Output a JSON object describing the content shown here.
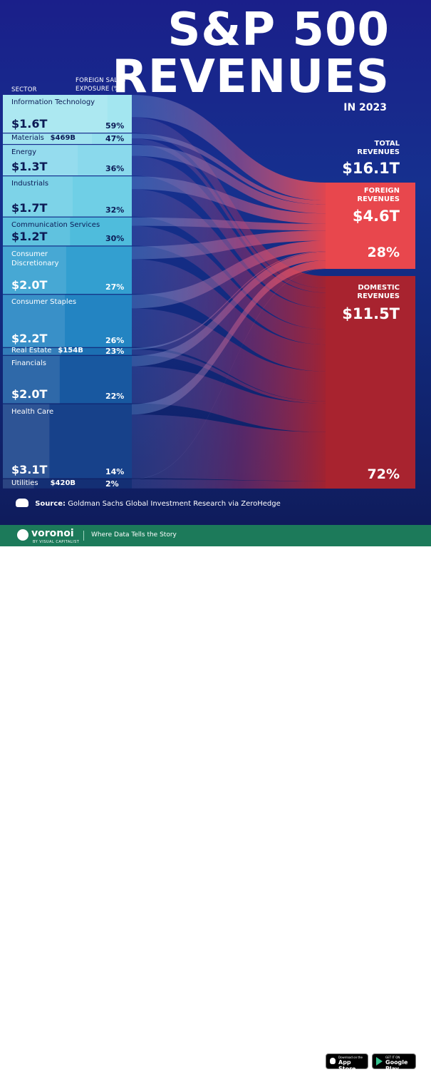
{
  "title": {
    "line1": "S&P 500",
    "line2": "REVENUES",
    "sub": "IN 2023"
  },
  "headers": {
    "sector": "SECTOR",
    "foreign_line1": "FOREIGN SALES",
    "foreign_line2": "EXPOSURE (%)"
  },
  "right": {
    "total_label1": "TOTAL",
    "total_label2": "REVENUES",
    "total_value": "$16.1T",
    "foreign_label1": "FOREIGN",
    "foreign_label2": "REVENUES",
    "foreign_value": "$4.6T",
    "foreign_pct": "28%",
    "domestic_label1": "DOMESTIC",
    "domestic_label2": "REVENUES",
    "domestic_value": "$11.5T",
    "domestic_pct": "72%"
  },
  "chart_data": {
    "type": "sankey",
    "unit": "USD",
    "sectors": [
      {
        "name": "Information Technology",
        "revenue_label": "$1.6T",
        "revenue": 1.6,
        "foreign_pct_label": "59%",
        "foreign_pct": 59,
        "color": "#a3e6f0"
      },
      {
        "name": "Materials",
        "revenue_label": "$469B",
        "revenue": 0.469,
        "foreign_pct_label": "47%",
        "foreign_pct": 47,
        "color": "#96e0ee"
      },
      {
        "name": "Energy",
        "revenue_label": "$1.3T",
        "revenue": 1.3,
        "foreign_pct_label": "36%",
        "foreign_pct": 36,
        "color": "#8ad9ec"
      },
      {
        "name": "Industrials",
        "revenue_label": "$1.7T",
        "revenue": 1.7,
        "foreign_pct_label": "32%",
        "foreign_pct": 32,
        "color": "#6fcfe6"
      },
      {
        "name": "Communication Services",
        "revenue_label": "$1.2T",
        "revenue": 1.2,
        "foreign_pct_label": "30%",
        "foreign_pct": 30,
        "color": "#4fbcdc"
      },
      {
        "name": "Consumer Discretionary",
        "revenue_label": "$2.0T",
        "revenue": 2.0,
        "foreign_pct_label": "27%",
        "foreign_pct": 27,
        "color": "#339fd0"
      },
      {
        "name": "Consumer Staples",
        "revenue_label": "$2.2T",
        "revenue": 2.2,
        "foreign_pct_label": "26%",
        "foreign_pct": 26,
        "color": "#2384c2"
      },
      {
        "name": "Real Estate",
        "revenue_label": "$154B",
        "revenue": 0.154,
        "foreign_pct_label": "23%",
        "foreign_pct": 23,
        "color": "#1c6fb2"
      },
      {
        "name": "Financials",
        "revenue_label": "$2.0T",
        "revenue": 2.0,
        "foreign_pct_label": "22%",
        "foreign_pct": 22,
        "color": "#1858a0"
      },
      {
        "name": "Health Care",
        "revenue_label": "$3.1T",
        "revenue": 3.1,
        "foreign_pct_label": "14%",
        "foreign_pct": 14,
        "color": "#17418a"
      },
      {
        "name": "Utilities",
        "revenue_label": "$420B",
        "revenue": 0.42,
        "foreign_pct_label": "2%",
        "foreign_pct": 2,
        "color": "#142f74"
      }
    ],
    "totals": {
      "total": 16.1,
      "foreign": 4.6,
      "domestic": 11.5,
      "foreign_share_pct": 28,
      "domestic_share_pct": 72
    },
    "colors": {
      "foreign": "#e8474d",
      "domestic": "#a8232f"
    }
  },
  "source": {
    "label": "Source:",
    "text": "Goldman Sachs Global Investment Research via ZeroHedge"
  },
  "footer": {
    "brand": "voronoi",
    "brand_sub": "BY VISUAL CAPITALIST",
    "tagline": "Where Data Tells the Story",
    "appstore_small": "Download on the",
    "appstore": "App Store",
    "googleplay_small": "GET IT ON",
    "googleplay": "Google Play",
    "color": "#1c7a5a"
  }
}
